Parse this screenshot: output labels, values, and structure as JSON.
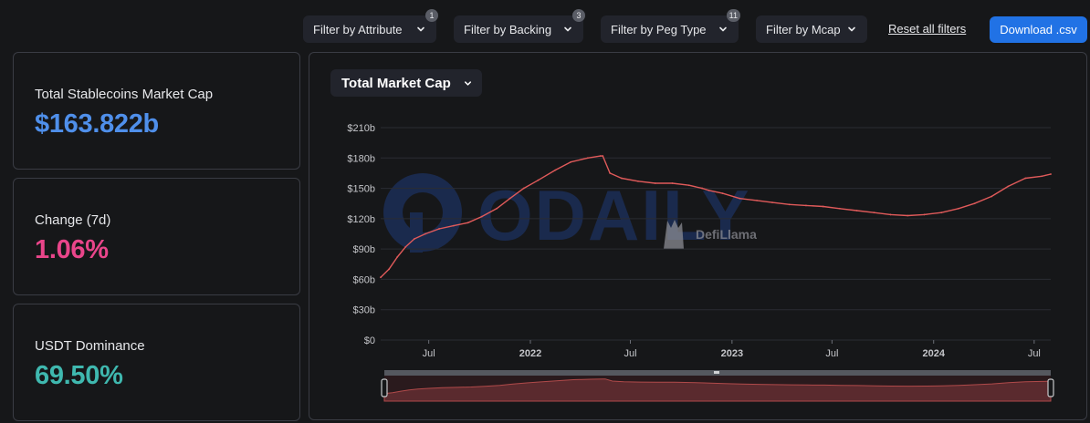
{
  "filters": [
    {
      "label": "Filter by Attribute",
      "count": "1"
    },
    {
      "label": "Filter by Backing",
      "count": "3"
    },
    {
      "label": "Filter by Peg Type",
      "count": "11"
    },
    {
      "label": "Filter by Mcap",
      "count": ""
    }
  ],
  "reset_label": "Reset all filters",
  "download_label": "Download .csv",
  "stats": [
    {
      "label": "Total Stablecoins Market Cap",
      "value": "$163.822b",
      "color": "#4f8fea"
    },
    {
      "label": "Change (7d)",
      "value": "1.06%",
      "color": "#e9458a"
    },
    {
      "label": "USDT Dominance",
      "value": "69.50%",
      "color": "#3fb8af"
    }
  ],
  "chart_select_label": "Total Market Cap",
  "watermarks": {
    "odaily": "ODAILY",
    "defillama": "DefiLlama"
  },
  "colors": {
    "line": "#e05a5a",
    "brush_fill": "#5a2a2e",
    "accent": "#2172e5",
    "watermark": "#1f3a78"
  },
  "chart_data": {
    "type": "line",
    "title": "",
    "xlabel": "",
    "ylabel": "",
    "ylim": [
      0,
      210
    ],
    "y_ticks": [
      {
        "value": 0,
        "label": "$0"
      },
      {
        "value": 30,
        "label": "$30b"
      },
      {
        "value": 60,
        "label": "$60b"
      },
      {
        "value": 90,
        "label": "$90b"
      },
      {
        "value": 120,
        "label": "$120b"
      },
      {
        "value": 150,
        "label": "$150b"
      },
      {
        "value": 180,
        "label": "$180b"
      },
      {
        "value": 210,
        "label": "$210b"
      }
    ],
    "xlim": [
      "2021-04-05",
      "2024-07-31"
    ],
    "x_ticks": [
      {
        "date": "2021-07-01",
        "label": "Jul",
        "bold": false
      },
      {
        "date": "2022-01-01",
        "label": "2022",
        "bold": true
      },
      {
        "date": "2022-07-01",
        "label": "Jul",
        "bold": false
      },
      {
        "date": "2023-01-01",
        "label": "2023",
        "bold": true
      },
      {
        "date": "2023-07-01",
        "label": "Jul",
        "bold": false
      },
      {
        "date": "2024-01-01",
        "label": "2024",
        "bold": true
      },
      {
        "date": "2024-07-01",
        "label": "Jul",
        "bold": false
      }
    ],
    "series": [
      {
        "name": "",
        "x": [
          "2021-04-05",
          "2021-04-20",
          "2021-05-05",
          "2021-05-20",
          "2021-06-05",
          "2021-06-25",
          "2021-07-20",
          "2021-08-15",
          "2021-09-10",
          "2021-10-05",
          "2021-11-01",
          "2021-11-25",
          "2021-12-20",
          "2022-01-15",
          "2022-02-15",
          "2022-03-15",
          "2022-04-15",
          "2022-05-08",
          "2022-05-12",
          "2022-05-25",
          "2022-06-15",
          "2022-07-15",
          "2022-08-15",
          "2022-09-15",
          "2022-10-15",
          "2022-11-08",
          "2022-11-20",
          "2022-12-15",
          "2023-01-15",
          "2023-02-15",
          "2023-03-15",
          "2023-04-15",
          "2023-05-15",
          "2023-06-15",
          "2023-07-15",
          "2023-08-15",
          "2023-09-15",
          "2023-10-15",
          "2023-11-15",
          "2023-12-15",
          "2024-01-15",
          "2024-02-15",
          "2024-03-15",
          "2024-04-15",
          "2024-05-15",
          "2024-06-15",
          "2024-07-15",
          "2024-07-31"
        ],
        "values": [
          62,
          70,
          82,
          92,
          100,
          105,
          110,
          113,
          116,
          122,
          130,
          140,
          150,
          158,
          168,
          176,
          180,
          182,
          182,
          165,
          160,
          157,
          155,
          155,
          153,
          150,
          148,
          145,
          140,
          138,
          136,
          134,
          133,
          132,
          130,
          128,
          126,
          124,
          123,
          124,
          126,
          130,
          135,
          142,
          152,
          160,
          162,
          164
        ]
      }
    ]
  }
}
